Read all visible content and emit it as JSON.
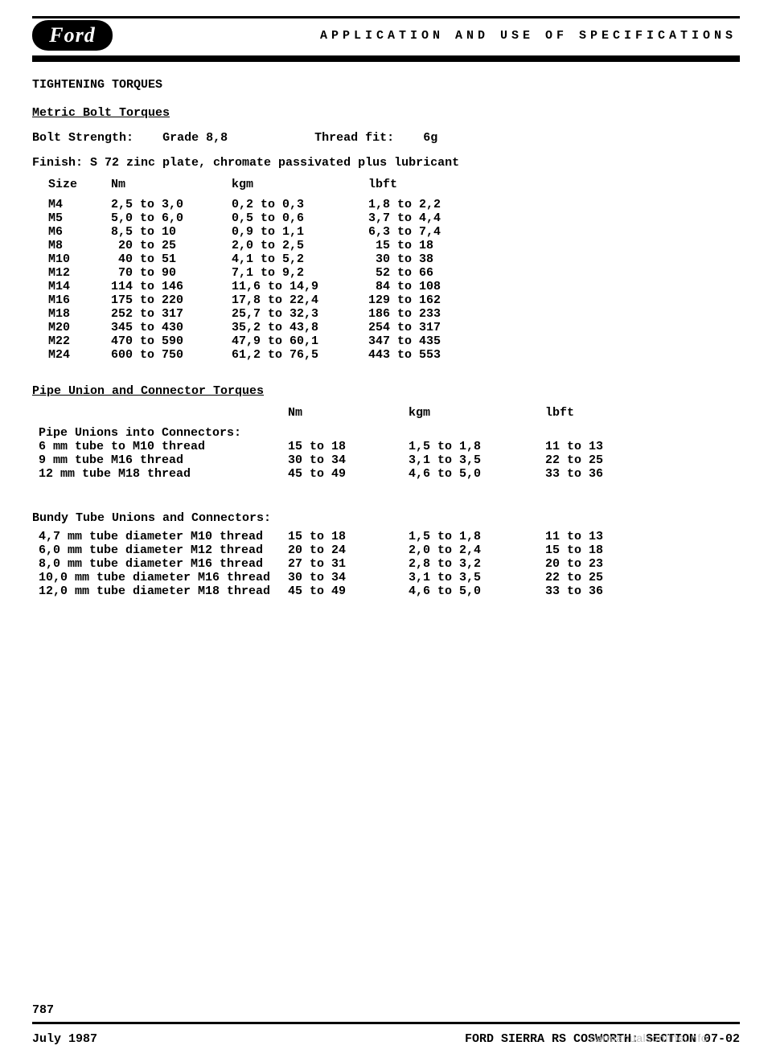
{
  "brand": "Ford",
  "header_title": "APPLICATION AND USE OF SPECIFICATIONS",
  "section_title": "TIGHTENING TORQUES",
  "metric_heading": "Metric Bolt Torques",
  "bolt_strength_label": "Bolt Strength:",
  "bolt_strength_value": "Grade 8,8",
  "thread_fit_label": "Thread fit:",
  "thread_fit_value": "6g",
  "finish_line": "Finish: S 72 zinc plate, chromate passivated plus lubricant",
  "metric_table": {
    "headers": {
      "size": "Size",
      "nm": "Nm",
      "kgm": "kgm",
      "lbft": "lbft"
    },
    "rows": [
      {
        "size": "M4",
        "nm": "2,5 to 3,0",
        "kgm": "0,2 to 0,3",
        "lbft": "1,8 to 2,2"
      },
      {
        "size": "M5",
        "nm": "5,0 to 6,0",
        "kgm": "0,5 to 0,6",
        "lbft": "3,7 to 4,4"
      },
      {
        "size": "M6",
        "nm": "8,5 to 10",
        "kgm": "0,9 to 1,1",
        "lbft": "6,3 to 7,4"
      },
      {
        "size": "M8",
        "nm": " 20 to 25",
        "kgm": "2,0 to 2,5",
        "lbft": " 15 to 18"
      },
      {
        "size": "M10",
        "nm": " 40 to 51",
        "kgm": "4,1 to 5,2",
        "lbft": " 30 to 38"
      },
      {
        "size": "M12",
        "nm": " 70 to 90",
        "kgm": "7,1 to 9,2",
        "lbft": " 52 to 66"
      },
      {
        "size": "M14",
        "nm": "114 to 146",
        "kgm": "11,6 to 14,9",
        "lbft": " 84 to 108"
      },
      {
        "size": "M16",
        "nm": "175 to 220",
        "kgm": "17,8 to 22,4",
        "lbft": "129 to 162"
      },
      {
        "size": "M18",
        "nm": "252 to 317",
        "kgm": "25,7 to 32,3",
        "lbft": "186 to 233"
      },
      {
        "size": "M20",
        "nm": "345 to 430",
        "kgm": "35,2 to 43,8",
        "lbft": "254 to 317"
      },
      {
        "size": "M22",
        "nm": "470 to 590",
        "kgm": "47,9 to 60,1",
        "lbft": "347 to 435"
      },
      {
        "size": "M24",
        "nm": "600 to 750",
        "kgm": "61,2 to 76,5",
        "lbft": "443 to 553"
      }
    ]
  },
  "pipe_heading": "Pipe Union and Connector Torques",
  "pipe_subhead": "Pipe Unions into Connectors:",
  "pipe_headers": {
    "nm": "Nm",
    "kgm": "kgm",
    "lbft": "lbft"
  },
  "pipe_rows": [
    {
      "desc": "6 mm tube to M10 thread",
      "nm": "15 to 18",
      "kgm": "1,5 to 1,8",
      "lbft": "11 to 13"
    },
    {
      "desc": "9 mm tube M16 thread",
      "nm": "30 to 34",
      "kgm": "3,1 to 3,5",
      "lbft": "22 to 25"
    },
    {
      "desc": "12 mm tube M18 thread",
      "nm": "45 to 49",
      "kgm": "4,6 to 5,0",
      "lbft": "33 to 36"
    }
  ],
  "bundy_subhead": "Bundy Tube Unions and Connectors:",
  "bundy_rows": [
    {
      "desc": "4,7 mm tube diameter M10 thread",
      "nm": "15 to 18",
      "kgm": "1,5 to 1,8",
      "lbft": "11 to 13"
    },
    {
      "desc": "6,0 mm tube diameter M12 thread",
      "nm": "20 to 24",
      "kgm": "2,0 to 2,4",
      "lbft": "15 to 18"
    },
    {
      "desc": "8,0 mm tube diameter M16 thread",
      "nm": "27 to 31",
      "kgm": "2,8 to 3,2",
      "lbft": "20 to 23"
    },
    {
      "desc": "10,0 mm tube diameter M16 thread",
      "nm": "30 to 34",
      "kgm": "3,1 to 3,5",
      "lbft": "22 to 25"
    },
    {
      "desc": "12,0 mm tube diameter M18 thread",
      "nm": "45 to 49",
      "kgm": "4,6 to 5,0",
      "lbft": "33 to 36"
    }
  ],
  "page_number": "787",
  "footer_date": "July 1987",
  "footer_section": "FORD SIERRA RS COSWORTH: SECTION 07-02",
  "watermark": "carmanualsonline.info",
  "colors": {
    "text": "#000000",
    "bg": "#ffffff",
    "watermark": "#bdbdbd"
  }
}
